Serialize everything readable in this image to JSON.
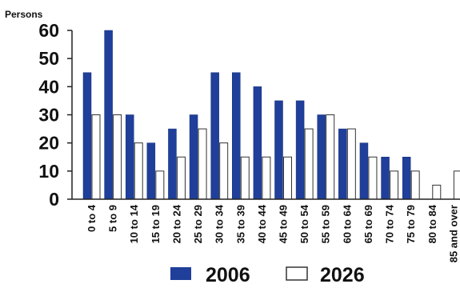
{
  "chart_data": {
    "type": "bar",
    "title": "",
    "xlabel": "",
    "ylabel": "Persons",
    "ylim": [
      0,
      60
    ],
    "yticks": [
      0,
      10,
      20,
      30,
      40,
      50,
      60
    ],
    "grid": false,
    "legend_position": "bottom",
    "categories": [
      "0 to 4",
      "5 to 9",
      "10 to 14",
      "15 to 19",
      "20 to 24",
      "25 to 29",
      "30 to 34",
      "35 to 39",
      "40 to 44",
      "45 to 49",
      "50 to 54",
      "55 to 59",
      "60 to 64",
      "65 to 69",
      "70 to 74",
      "75 to 79",
      "80 to 84",
      "85 and over"
    ],
    "series": [
      {
        "name": "2006",
        "color": "#1f3f9a",
        "values": [
          45,
          60,
          30,
          20,
          25,
          30,
          45,
          45,
          40,
          35,
          35,
          30,
          25,
          20,
          15,
          15,
          0,
          0
        ]
      },
      {
        "name": "2026",
        "color": "#ffffff",
        "values": [
          30,
          30,
          20,
          10,
          15,
          25,
          20,
          15,
          15,
          15,
          25,
          30,
          25,
          15,
          10,
          10,
          5,
          10
        ]
      }
    ]
  }
}
